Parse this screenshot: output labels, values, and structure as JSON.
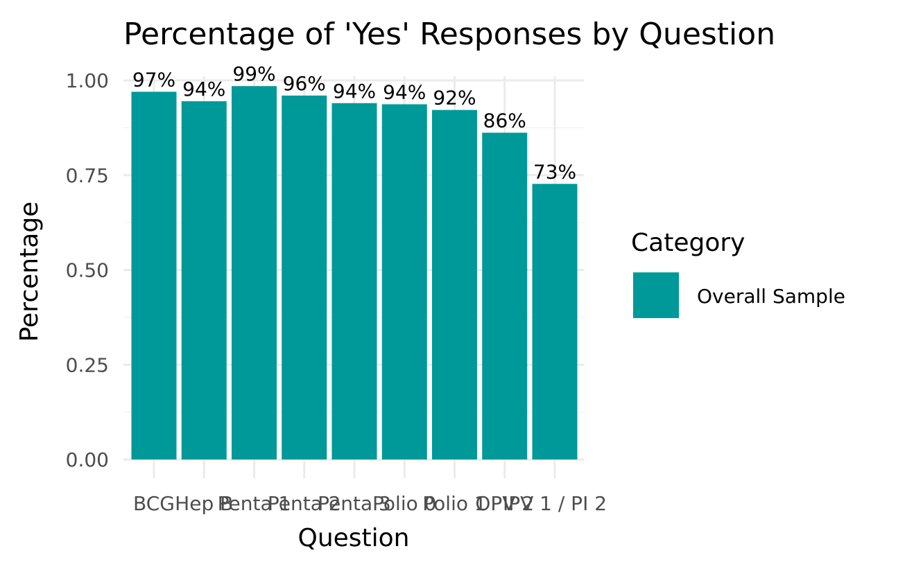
{
  "chart_data": {
    "type": "bar",
    "title": "Percentage of 'Yes' Responses by Question",
    "xlabel": "Question",
    "ylabel": "Percentage",
    "categories": [
      "BCG",
      "Hep B",
      "Penta 1",
      "Penta 2",
      "Penta 3",
      "Polio 0",
      "Polio 1",
      "OPV 2",
      "IPV 1 / PI 2"
    ],
    "series": [
      {
        "name": "Overall Sample",
        "color": "#009999",
        "values": [
          0.97,
          0.945,
          0.985,
          0.96,
          0.94,
          0.937,
          0.922,
          0.862,
          0.727
        ],
        "labels": [
          "97%",
          "94%",
          "99%",
          "96%",
          "94%",
          "94%",
          "92%",
          "86%",
          "73%"
        ]
      }
    ],
    "ylim": [
      0,
      1.0
    ],
    "yticks": [
      0.0,
      0.25,
      0.5,
      0.75,
      1.0
    ],
    "ytick_labels": [
      "0.00",
      "0.25",
      "0.50",
      "0.75",
      "1.00"
    ],
    "grid": true,
    "legend": {
      "title": "Category",
      "placement": "right"
    }
  }
}
